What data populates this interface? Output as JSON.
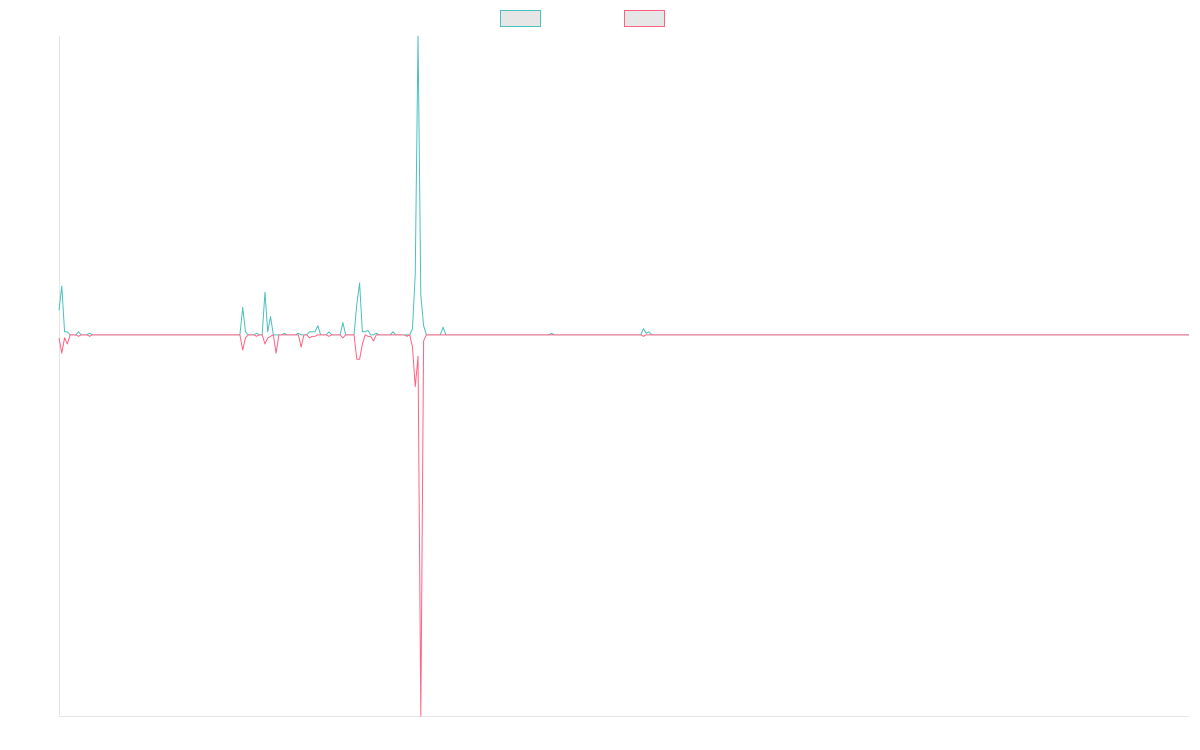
{
  "chart_data": {
    "type": "line",
    "title": "",
    "xlabel": "",
    "ylabel": "",
    "grid": false,
    "legend": {
      "placement": "top-center",
      "entries": [
        "",
        ""
      ]
    },
    "ylim": [
      -1.25,
      0.98
    ],
    "baseline": 0,
    "n": 407,
    "series": [
      {
        "color": "#4bc0c0",
        "points": [
          [
            0,
            0.08
          ],
          [
            1,
            0.16
          ],
          [
            2,
            0.01
          ],
          [
            3,
            0.01
          ],
          [
            4,
            0
          ],
          [
            5,
            0
          ],
          [
            7,
            0.01
          ],
          [
            8,
            0
          ],
          [
            10,
            0
          ],
          [
            11,
            0.005
          ],
          [
            12,
            0
          ],
          [
            65,
            0
          ],
          [
            66,
            0.09
          ],
          [
            67,
            0.01
          ],
          [
            68,
            0
          ],
          [
            70,
            0
          ],
          [
            71,
            0.005
          ],
          [
            72,
            0
          ],
          [
            73,
            0
          ],
          [
            74,
            0.14
          ],
          [
            75,
            0.01
          ],
          [
            76,
            0.06
          ],
          [
            77,
            0
          ],
          [
            80,
            0
          ],
          [
            81,
            0.005
          ],
          [
            82,
            0
          ],
          [
            85,
            0
          ],
          [
            86,
            0.005
          ],
          [
            87,
            0
          ],
          [
            89,
            0
          ],
          [
            90,
            0.01
          ],
          [
            91,
            0.01
          ],
          [
            92,
            0.01
          ],
          [
            93,
            0.03
          ],
          [
            94,
            0
          ],
          [
            96,
            0
          ],
          [
            97,
            0.01
          ],
          [
            98,
            0
          ],
          [
            101,
            0
          ],
          [
            102,
            0.04
          ],
          [
            103,
            0
          ],
          [
            104,
            0
          ],
          [
            107,
            0.1
          ],
          [
            108,
            0.17
          ],
          [
            109,
            0.01
          ],
          [
            110,
            0.01
          ],
          [
            111,
            0.015
          ],
          [
            112,
            0
          ],
          [
            114,
            0.005
          ],
          [
            116,
            0
          ],
          [
            119,
            0
          ],
          [
            120,
            0.01
          ],
          [
            121,
            0
          ],
          [
            122,
            0
          ],
          [
            123,
            0
          ],
          [
            125,
            0
          ],
          [
            126,
            0
          ],
          [
            127,
            0.02
          ],
          [
            128,
            0.2
          ],
          [
            129,
            0.98
          ],
          [
            130,
            0.13
          ],
          [
            131,
            0.03
          ],
          [
            132,
            0
          ],
          [
            133,
            0
          ],
          [
            134,
            0
          ],
          [
            135,
            0
          ],
          [
            136,
            0
          ],
          [
            137,
            0
          ],
          [
            138,
            0.025
          ],
          [
            139,
            0
          ],
          [
            176,
            0
          ],
          [
            177,
            0.005
          ],
          [
            178,
            0
          ],
          [
            209,
            0
          ],
          [
            210,
            0.02
          ],
          [
            211,
            0.005
          ],
          [
            212,
            0.01
          ],
          [
            213,
            0
          ],
          [
            406,
            0
          ]
        ]
      },
      {
        "color": "#ff6384",
        "points": [
          [
            0,
            -0.01
          ],
          [
            1,
            -0.06
          ],
          [
            2,
            -0.01
          ],
          [
            3,
            -0.03
          ],
          [
            4,
            0
          ],
          [
            5,
            0
          ],
          [
            7,
            -0.005
          ],
          [
            8,
            0
          ],
          [
            10,
            0
          ],
          [
            11,
            -0.005
          ],
          [
            12,
            0
          ],
          [
            65,
            0
          ],
          [
            66,
            -0.05
          ],
          [
            67,
            -0.01
          ],
          [
            68,
            0
          ],
          [
            70,
            0
          ],
          [
            71,
            -0.005
          ],
          [
            72,
            0
          ],
          [
            73,
            0
          ],
          [
            74,
            -0.03
          ],
          [
            75,
            -0.01
          ],
          [
            76,
            -0.005
          ],
          [
            77,
            0
          ],
          [
            78,
            -0.06
          ],
          [
            79,
            0
          ],
          [
            80,
            0
          ],
          [
            81,
            0
          ],
          [
            82,
            0
          ],
          [
            86,
            0
          ],
          [
            87,
            -0.04
          ],
          [
            88,
            0
          ],
          [
            89,
            0
          ],
          [
            90,
            -0.01
          ],
          [
            91,
            -0.005
          ],
          [
            92,
            -0.005
          ],
          [
            93,
            0
          ],
          [
            94,
            0
          ],
          [
            96,
            0
          ],
          [
            97,
            -0.005
          ],
          [
            98,
            0
          ],
          [
            101,
            0
          ],
          [
            102,
            -0.01
          ],
          [
            103,
            0
          ],
          [
            104,
            0
          ],
          [
            107,
            -0.08
          ],
          [
            108,
            -0.08
          ],
          [
            109,
            -0.03
          ],
          [
            110,
            0
          ],
          [
            111,
            -0.005
          ],
          [
            112,
            -0.005
          ],
          [
            113,
            -0.02
          ],
          [
            114,
            0
          ],
          [
            116,
            0
          ],
          [
            119,
            0
          ],
          [
            120,
            0
          ],
          [
            121,
            0
          ],
          [
            122,
            0
          ],
          [
            123,
            0
          ],
          [
            125,
            -0.005
          ],
          [
            126,
            0
          ],
          [
            127,
            -0.04
          ],
          [
            128,
            -0.17
          ],
          [
            129,
            -0.07
          ],
          [
            130,
            -1.25
          ],
          [
            131,
            -0.02
          ],
          [
            132,
            0
          ],
          [
            133,
            0
          ],
          [
            134,
            0
          ],
          [
            135,
            0
          ],
          [
            136,
            0
          ],
          [
            137,
            0
          ],
          [
            138,
            0
          ],
          [
            139,
            0
          ],
          [
            209,
            0
          ],
          [
            210,
            -0.005
          ],
          [
            211,
            0
          ],
          [
            406,
            0
          ]
        ]
      }
    ]
  }
}
